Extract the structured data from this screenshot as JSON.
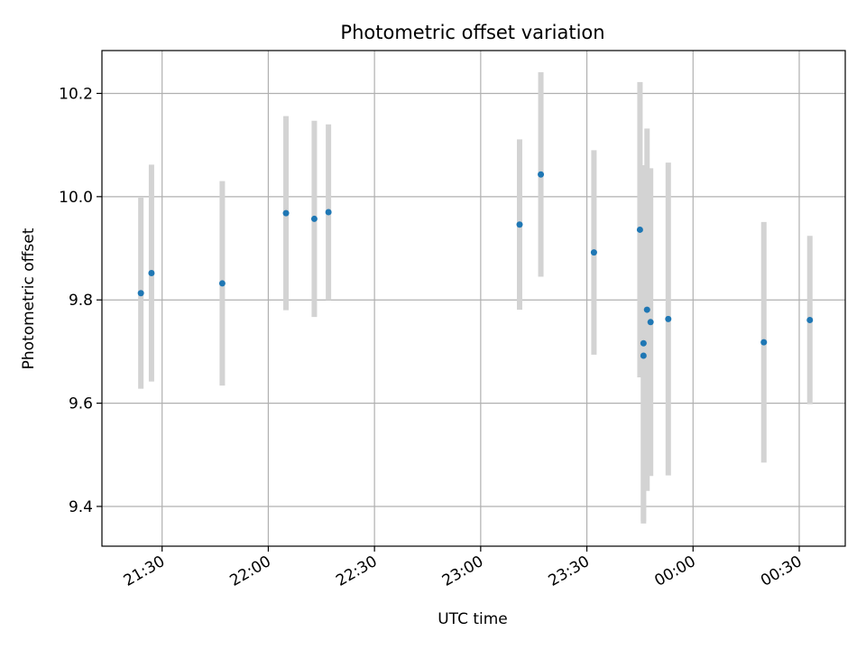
{
  "chart_data": {
    "type": "scatter",
    "title": "Photometric offset variation",
    "xlabel": "UTC time",
    "ylabel": "Photometric offset",
    "x_ticks": [
      "21:30",
      "22:00",
      "22:30",
      "23:00",
      "23:30",
      "00:00",
      "00:30"
    ],
    "y_ticks": [
      9.4,
      9.6,
      9.8,
      10.0,
      10.2
    ],
    "xlim": [
      "21:13",
      "00:43"
    ],
    "ylim": [
      9.323,
      10.283
    ],
    "grid": true,
    "marker_color": "#1f77b4",
    "errorbar_color": "#d3d3d3",
    "points": [
      {
        "time": "21:24",
        "y": 9.813,
        "err": 0.185
      },
      {
        "time": "21:27",
        "y": 9.852,
        "err": 0.21
      },
      {
        "time": "21:47",
        "y": 9.832,
        "err": 0.198
      },
      {
        "time": "22:05",
        "y": 9.968,
        "err": 0.188
      },
      {
        "time": "22:13",
        "y": 9.957,
        "err": 0.19
      },
      {
        "time": "22:17",
        "y": 9.97,
        "err": 0.17
      },
      {
        "time": "23:11",
        "y": 9.946,
        "err": 0.165
      },
      {
        "time": "23:17",
        "y": 10.043,
        "err": 0.198
      },
      {
        "time": "23:32",
        "y": 9.892,
        "err": 0.198
      },
      {
        "time": "23:45",
        "y": 9.936,
        "err": 0.286
      },
      {
        "time": "23:46",
        "y": 9.692,
        "err": 0.325
      },
      {
        "time": "23:46",
        "y": 9.716,
        "err": 0.345
      },
      {
        "time": "23:47",
        "y": 9.781,
        "err": 0.351
      },
      {
        "time": "23:48",
        "y": 9.757,
        "err": 0.298
      },
      {
        "time": "23:53",
        "y": 9.763,
        "err": 0.303
      },
      {
        "time": "00:20",
        "y": 9.718,
        "err": 0.233
      },
      {
        "time": "00:33",
        "y": 9.761,
        "err": 0.163
      }
    ]
  }
}
